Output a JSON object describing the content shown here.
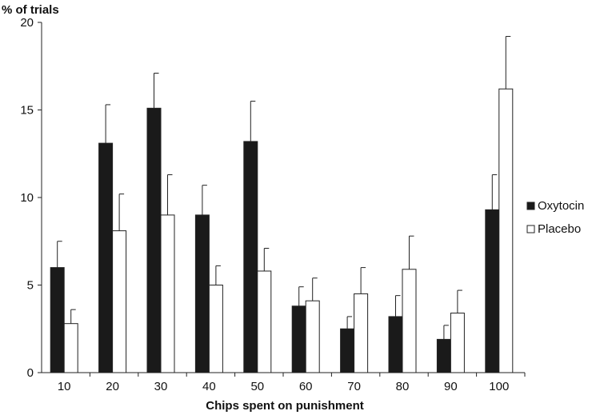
{
  "chart_data": {
    "type": "bar",
    "title": "",
    "ylabel": "% of trials",
    "xlabel": "Chips spent on punishment",
    "ylim": [
      0,
      20
    ],
    "yticks": [
      0,
      5,
      10,
      15,
      20
    ],
    "categories": [
      "10",
      "20",
      "30",
      "40",
      "50",
      "60",
      "70",
      "80",
      "90",
      "100"
    ],
    "series": [
      {
        "name": "Oxytocin",
        "color": "#1a1a1a",
        "values": [
          6.0,
          13.1,
          15.1,
          9.0,
          13.2,
          3.8,
          2.5,
          3.2,
          1.9,
          9.3
        ],
        "errors": [
          1.5,
          2.2,
          2.0,
          1.7,
          2.3,
          1.1,
          0.7,
          1.2,
          0.8,
          2.0
        ]
      },
      {
        "name": "Placebo",
        "color": "#ffffff",
        "values": [
          2.8,
          8.1,
          9.0,
          5.0,
          5.8,
          4.1,
          4.5,
          5.9,
          3.4,
          16.2
        ],
        "errors": [
          0.8,
          2.1,
          2.3,
          1.1,
          1.3,
          1.3,
          1.5,
          1.9,
          1.3,
          3.0
        ]
      }
    ],
    "grid": false,
    "legend": "right"
  }
}
